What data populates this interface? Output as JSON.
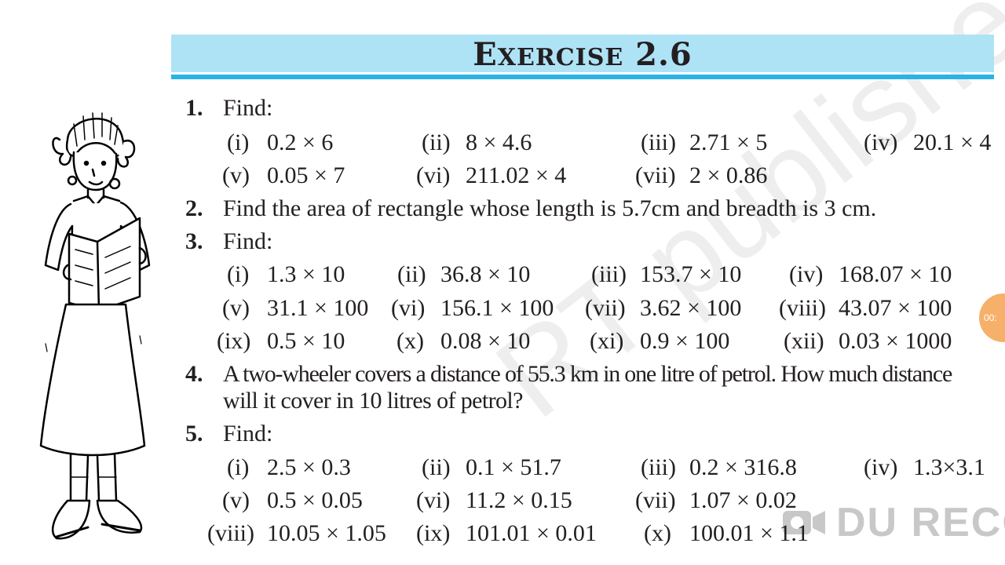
{
  "header": {
    "title_lead": "E",
    "title_rest": "XERCISE",
    "title_num": "2.6"
  },
  "q1": {
    "num": "1.",
    "text": "Find:",
    "items": [
      {
        "label": "(i)",
        "expr": "0.2 × 6"
      },
      {
        "label": "(ii)",
        "expr": "8 × 4.6"
      },
      {
        "label": "(iii)",
        "expr": "2.71 × 5"
      },
      {
        "label": "(iv)",
        "expr": "20.1 × 4"
      },
      {
        "label": "(v)",
        "expr": "0.05 × 7"
      },
      {
        "label": "(vi)",
        "expr": "211.02 × 4"
      },
      {
        "label": "(vii)",
        "expr": "2 × 0.86"
      }
    ]
  },
  "q2": {
    "num": "2.",
    "text": "Find the area of rectangle whose length is 5.7cm and breadth is 3 cm."
  },
  "q3": {
    "num": "3.",
    "text": "Find:",
    "items": [
      {
        "label": "(i)",
        "expr": "1.3 × 10"
      },
      {
        "label": "(ii)",
        "expr": "36.8 × 10"
      },
      {
        "label": "(iii)",
        "expr": "153.7 × 10"
      },
      {
        "label": "(iv)",
        "expr": "168.07 × 10"
      },
      {
        "label": "(v)",
        "expr": "31.1 × 100"
      },
      {
        "label": "(vi)",
        "expr": "156.1 × 100"
      },
      {
        "label": "(vii)",
        "expr": "3.62 × 100"
      },
      {
        "label": "(viii)",
        "expr": "43.07 × 100"
      },
      {
        "label": "(ix)",
        "expr": "0.5 × 10"
      },
      {
        "label": "(x)",
        "expr": "0.08 × 10"
      },
      {
        "label": "(xi)",
        "expr": "0.9 × 100"
      },
      {
        "label": "(xii)",
        "expr": "0.03 × 1000"
      }
    ]
  },
  "q4": {
    "num": "4.",
    "line1": "A two-wheeler covers a distance of 55.3 km in one litre of petrol. How much distance",
    "line2": "will it cover in 10 litres of petrol?"
  },
  "q5": {
    "num": "5.",
    "text": "Find:",
    "items": [
      {
        "label": "(i)",
        "expr": "2.5 × 0.3"
      },
      {
        "label": "(ii)",
        "expr": "0.1 × 51.7"
      },
      {
        "label": "(iii)",
        "expr": "0.2 × 316.8"
      },
      {
        "label": "(iv)",
        "expr": "1.3×3.1"
      },
      {
        "label": "(v)",
        "expr": "0.5 × 0.05"
      },
      {
        "label": "(vi)",
        "expr": "11.2 × 0.15"
      },
      {
        "label": "(vii)",
        "expr": "1.07 × 0.02"
      },
      {
        "label": "(viii)",
        "expr": "10.05 × 1.05"
      },
      {
        "label": "(ix)",
        "expr": "101.01 × 0.01"
      },
      {
        "label": "(x)",
        "expr": "100.01 × 1.1"
      }
    ]
  },
  "overlay": {
    "watermark": "RT published",
    "recorder_time": "00:",
    "brand": "DU RECO"
  },
  "colors": {
    "header_fill": "#aee3f6",
    "header_rule": "#2bb3e5",
    "text": "#231f20"
  }
}
